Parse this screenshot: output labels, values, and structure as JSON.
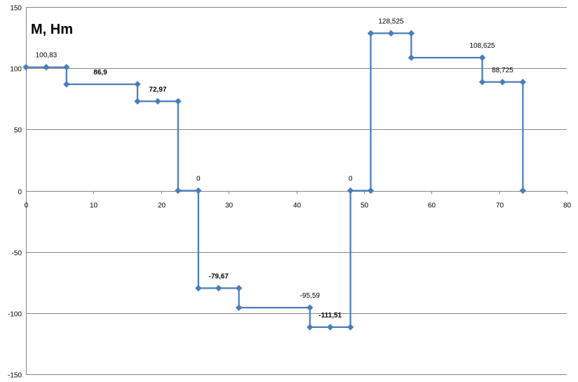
{
  "chart_data": {
    "type": "line",
    "title": "M, Hm",
    "xlabel": "",
    "ylabel": "",
    "xlim": [
      0,
      80
    ],
    "ylim": [
      -150,
      150
    ],
    "x_ticks": [
      "0",
      "10",
      "20",
      "30",
      "40",
      "50",
      "60",
      "70",
      "80"
    ],
    "y_ticks": [
      "150",
      "100",
      "50",
      "0",
      "-50",
      "-100",
      "-150"
    ],
    "grid": "horizontal",
    "legend": "none",
    "colors": {
      "series": "#4a7ebb",
      "grid": "#868686"
    },
    "series": [
      {
        "points": [
          [
            0,
            100.83
          ],
          [
            3,
            100.83
          ],
          [
            6,
            100.83
          ],
          [
            6,
            86.9
          ],
          [
            16.5,
            86.9
          ],
          [
            16.5,
            72.97
          ],
          [
            19.5,
            72.97
          ],
          [
            22.5,
            72.97
          ],
          [
            22.5,
            0
          ],
          [
            25.5,
            0
          ],
          [
            25.5,
            -79.67
          ],
          [
            28.5,
            -79.67
          ],
          [
            31.5,
            -79.67
          ],
          [
            31.5,
            -95.59
          ],
          [
            42,
            -95.59
          ],
          [
            42,
            -111.51
          ],
          [
            45,
            -111.51
          ],
          [
            48,
            -111.51
          ],
          [
            48,
            0
          ],
          [
            51,
            0
          ],
          [
            51,
            128.525
          ],
          [
            54,
            128.525
          ],
          [
            57,
            128.525
          ],
          [
            57,
            108.625
          ],
          [
            67.5,
            108.625
          ],
          [
            67.5,
            88.725
          ],
          [
            70.5,
            88.725
          ],
          [
            73.5,
            88.725
          ],
          [
            73.5,
            0
          ]
        ]
      }
    ],
    "data_labels": [
      {
        "text": "100,83",
        "x": 3,
        "y": 100.83,
        "bold": false
      },
      {
        "text": "86,9",
        "x": 11,
        "y": 86.9,
        "bold": true
      },
      {
        "text": "72,97",
        "x": 19.5,
        "y": 72.97,
        "bold": true
      },
      {
        "text": "0",
        "x": 25.5,
        "y": 0,
        "bold": false
      },
      {
        "text": "-79,67",
        "x": 28.5,
        "y": -79.67,
        "bold": true
      },
      {
        "text": "-95,59",
        "x": 42,
        "y": -95.59,
        "bold": false
      },
      {
        "text": "-111,51",
        "x": 45,
        "y": -111.51,
        "bold": true
      },
      {
        "text": "0",
        "x": 48,
        "y": 0,
        "bold": false
      },
      {
        "text": "128,525",
        "x": 54,
        "y": 128.525,
        "bold": false
      },
      {
        "text": "108,625",
        "x": 67.5,
        "y": 108.625,
        "bold": false
      },
      {
        "text": "88,725",
        "x": 70.5,
        "y": 88.725,
        "bold": false
      }
    ]
  }
}
